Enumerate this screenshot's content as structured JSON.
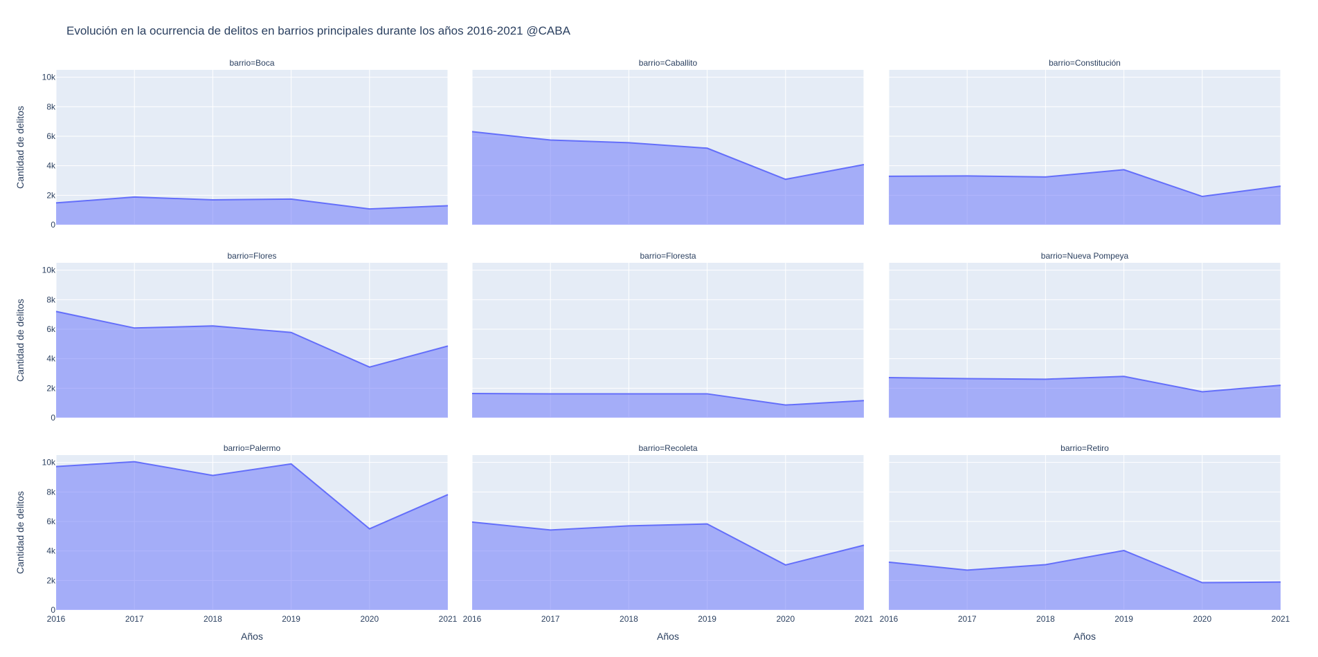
{
  "chart_data": {
    "type": "area",
    "title": "Evolución en la ocurrencia de delitos en barrios principales durante los años 2016-2021 @CABA",
    "xlabel": "Años",
    "ylabel": "Cantidad de delitos",
    "x": [
      2016,
      2017,
      2018,
      2019,
      2020,
      2021
    ],
    "xlim": [
      2016,
      2021
    ],
    "ylim": [
      0,
      10500
    ],
    "x_ticks": [
      "2016",
      "2017",
      "2018",
      "2019",
      "2020",
      "2021"
    ],
    "y_ticks": [
      {
        "value": 0,
        "label": "0"
      },
      {
        "value": 2000,
        "label": "2k"
      },
      {
        "value": 4000,
        "label": "4k"
      },
      {
        "value": 6000,
        "label": "6k"
      },
      {
        "value": 8000,
        "label": "8k"
      },
      {
        "value": 10000,
        "label": "10k"
      }
    ],
    "grid": true,
    "colors": {
      "line": "#636efa",
      "fill": "rgba(99,110,250,0.5)",
      "plot_bg": "#e5ecf6",
      "grid": "#ffffff",
      "text": "#2a3f5f"
    },
    "facets": [
      {
        "title": "barrio=Boca",
        "values": [
          1480,
          1880,
          1690,
          1740,
          1070,
          1290
        ]
      },
      {
        "title": "barrio=Caballito",
        "values": [
          6310,
          5740,
          5560,
          5190,
          3080,
          4080
        ]
      },
      {
        "title": "barrio=Constitución",
        "values": [
          3290,
          3310,
          3240,
          3730,
          1920,
          2620
        ]
      },
      {
        "title": "barrio=Flores",
        "values": [
          7200,
          6080,
          6220,
          5780,
          3430,
          4860
        ]
      },
      {
        "title": "barrio=Floresta",
        "values": [
          1640,
          1620,
          1620,
          1620,
          860,
          1160
        ]
      },
      {
        "title": "barrio=Nueva Pompeya",
        "values": [
          2720,
          2650,
          2610,
          2800,
          1760,
          2200
        ]
      },
      {
        "title": "barrio=Palermo",
        "values": [
          9720,
          10050,
          9120,
          9900,
          5500,
          7820
        ]
      },
      {
        "title": "barrio=Recoleta",
        "values": [
          5960,
          5420,
          5700,
          5830,
          3050,
          4390
        ]
      },
      {
        "title": "barrio=Retiro",
        "values": [
          3240,
          2700,
          3070,
          4030,
          1850,
          1890
        ]
      }
    ]
  }
}
